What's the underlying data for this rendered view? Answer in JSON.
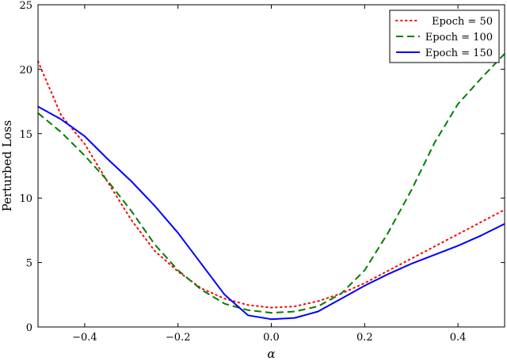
{
  "chart_data": {
    "type": "line",
    "xlabel": "α",
    "ylabel": "Perturbed Loss",
    "xlim": [
      -0.5,
      0.5
    ],
    "ylim": [
      0,
      25
    ],
    "xticks": [
      -0.4,
      -0.2,
      0.0,
      0.2,
      0.4
    ],
    "xtick_labels": [
      "−0.4",
      "−0.2",
      "0.0",
      "0.2",
      "0.4"
    ],
    "yticks": [
      0,
      5,
      10,
      15,
      20,
      25
    ],
    "ytick_labels": [
      "0",
      "5",
      "10",
      "15",
      "20",
      "25"
    ],
    "grid": false,
    "legend_position": "top-right",
    "series": [
      {
        "name": "Epoch = 50",
        "color": "#ff0000",
        "style": "dotted",
        "x": [
          -0.5,
          -0.45,
          -0.4,
          -0.35,
          -0.3,
          -0.25,
          -0.2,
          -0.15,
          -0.1,
          -0.05,
          0.0,
          0.05,
          0.1,
          0.15,
          0.2,
          0.3,
          0.4,
          0.5
        ],
        "y": [
          20.6,
          16.4,
          14.2,
          11.2,
          8.3,
          5.9,
          4.3,
          3.0,
          2.2,
          1.7,
          1.5,
          1.6,
          2.0,
          2.6,
          3.4,
          5.3,
          7.2,
          9.1
        ]
      },
      {
        "name": "Epoch = 100",
        "color": "#007f00",
        "style": "dashed",
        "x": [
          -0.5,
          -0.45,
          -0.4,
          -0.35,
          -0.3,
          -0.25,
          -0.2,
          -0.15,
          -0.1,
          -0.05,
          0.0,
          0.05,
          0.1,
          0.15,
          0.2,
          0.25,
          0.3,
          0.35,
          0.4,
          0.45,
          0.5
        ],
        "y": [
          16.6,
          15.1,
          13.3,
          11.3,
          9.0,
          6.4,
          4.4,
          2.9,
          1.8,
          1.3,
          1.1,
          1.2,
          1.6,
          2.6,
          4.4,
          7.3,
          10.6,
          14.3,
          17.3,
          19.3,
          21.2
        ]
      },
      {
        "name": "Epoch = 150",
        "color": "#0000ff",
        "style": "solid",
        "x": [
          -0.5,
          -0.45,
          -0.4,
          -0.35,
          -0.3,
          -0.25,
          -0.2,
          -0.15,
          -0.1,
          -0.05,
          0.0,
          0.05,
          0.1,
          0.15,
          0.2,
          0.25,
          0.3,
          0.35,
          0.4,
          0.45,
          0.5
        ],
        "y": [
          17.1,
          16.1,
          14.8,
          13.0,
          11.3,
          9.4,
          7.3,
          4.9,
          2.5,
          0.9,
          0.6,
          0.7,
          1.2,
          2.2,
          3.2,
          4.1,
          4.9,
          5.6,
          6.3,
          7.1,
          8.0
        ]
      }
    ]
  }
}
